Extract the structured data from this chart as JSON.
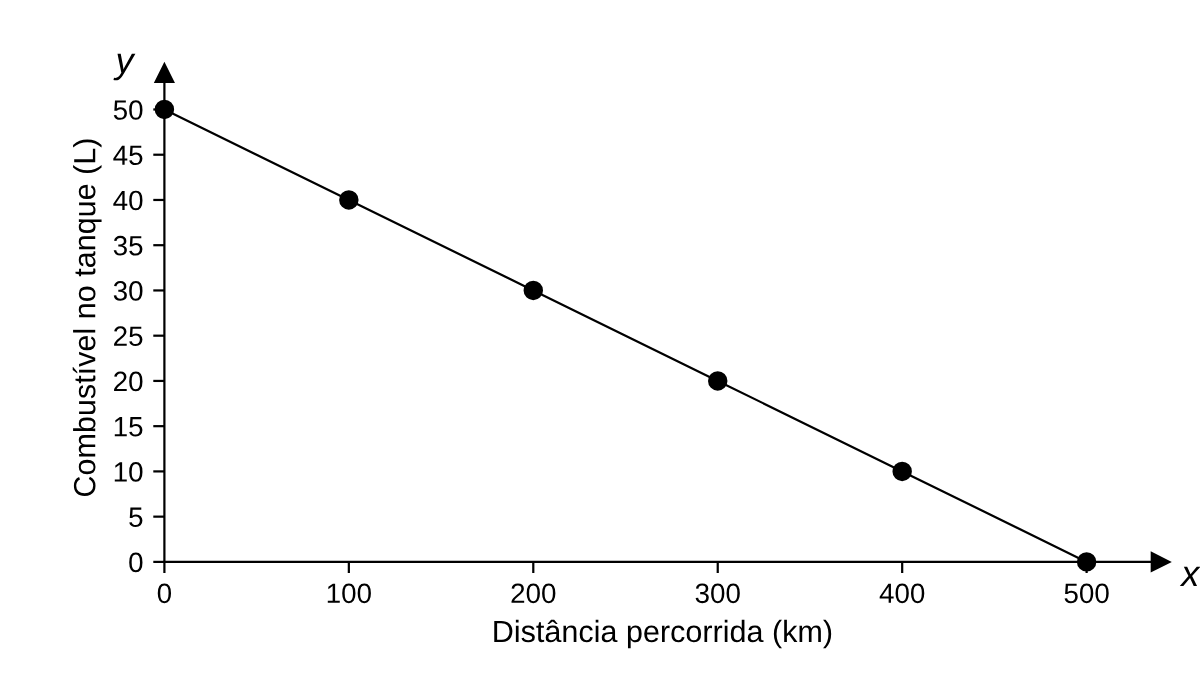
{
  "chart_data": {
    "type": "line",
    "xlabel": "Distância percorrida (km)",
    "ylabel": "Combustível no tanque (L)",
    "annotations": [
      "y",
      "x"
    ],
    "x": [
      0,
      100,
      200,
      300,
      400,
      500
    ],
    "series": [
      {
        "color": "#000000",
        "values": [
          50,
          40,
          30,
          20,
          10,
          0
        ]
      }
    ],
    "marker": "circle",
    "line_style": "solid",
    "xlim": [
      0,
      540
    ],
    "ylim": [
      0,
      54
    ],
    "xticks": [
      0,
      100,
      200,
      300,
      400,
      500
    ],
    "yticks": [
      0,
      5,
      10,
      15,
      20,
      25,
      30,
      35,
      40,
      45,
      50
    ],
    "grid": false,
    "legend": false
  }
}
